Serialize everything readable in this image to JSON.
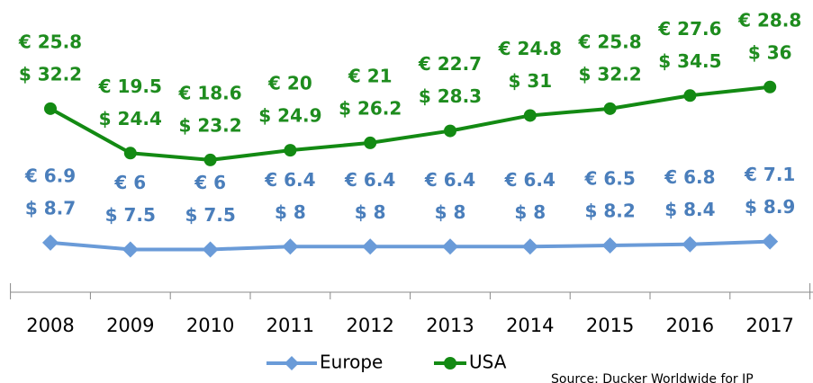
{
  "chart_data": {
    "type": "line",
    "categories": [
      "2008",
      "2009",
      "2010",
      "2011",
      "2012",
      "2013",
      "2014",
      "2015",
      "2016",
      "2017"
    ],
    "series": [
      {
        "name": "Europe",
        "color": "#6a9bd8",
        "label_color": "#4a7ebb",
        "marker": "diamond",
        "values": [
          8.7,
          7.5,
          7.5,
          8,
          8,
          8,
          8,
          8.2,
          8.4,
          8.9
        ],
        "value_labels": [
          "$ 8.7",
          "$ 7.5",
          "$ 7.5",
          "$ 8",
          "$ 8",
          "$ 8",
          "$ 8",
          "$ 8.2",
          "$ 8.4",
          "$ 8.9"
        ],
        "euro_labels": [
          "€ 6.9",
          "€ 6",
          "€ 6",
          "€ 6.4",
          "€ 6.4",
          "€ 6.4",
          "€ 6.4",
          "€ 6.5",
          "€ 6.8",
          "€ 7.1"
        ]
      },
      {
        "name": "USA",
        "color": "#138a13",
        "label_color": "#1e8c1e",
        "marker": "circle",
        "values": [
          32.2,
          24.4,
          23.2,
          24.9,
          26.2,
          28.3,
          31,
          32.2,
          34.5,
          36
        ],
        "value_labels": [
          "$ 32.2",
          "$ 24.4",
          "$ 23.2",
          "$ 24.9",
          "$ 26.2",
          "$ 28.3",
          "$ 31",
          "$ 32.2",
          "$ 34.5",
          "$ 36"
        ],
        "euro_labels": [
          "€ 25.8",
          "€ 19.5",
          "€ 18.6",
          "€ 20",
          "€ 21",
          "€ 22.7",
          "€ 24.8",
          "€ 25.8",
          "€ 27.6",
          "€ 28.8"
        ]
      }
    ],
    "ylim": [
      0,
      50
    ],
    "source": "Source: Ducker Worldwide for IP"
  }
}
